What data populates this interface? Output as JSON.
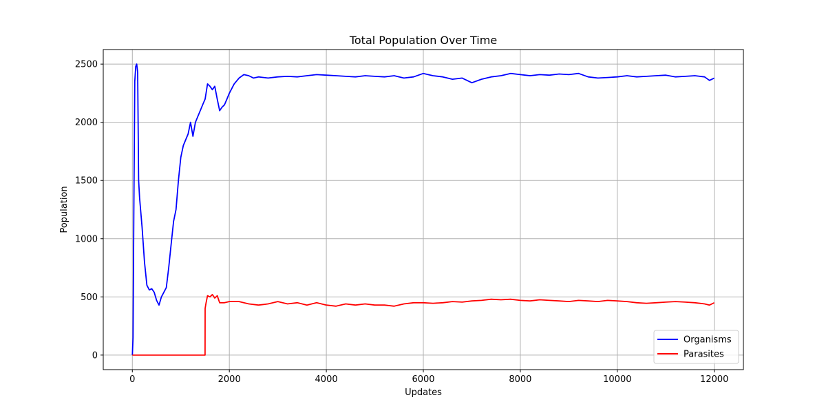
{
  "chart_data": {
    "type": "line",
    "title": "Total Population Over Time",
    "xlabel": "Updates",
    "ylabel": "Population",
    "xlim": [
      -600,
      12600
    ],
    "ylim": [
      -125,
      2625
    ],
    "xticks": [
      0,
      2000,
      4000,
      6000,
      8000,
      10000,
      12000
    ],
    "xtick_labels": [
      "0",
      "2000",
      "4000",
      "6000",
      "8000",
      "10000",
      "12000"
    ],
    "yticks": [
      0,
      500,
      1000,
      1500,
      2000,
      2500
    ],
    "ytick_labels": [
      "0",
      "500",
      "1000",
      "1500",
      "2000",
      "2500"
    ],
    "grid": true,
    "legend_position": "bottom-right",
    "series": [
      {
        "name": "Organisms",
        "color": "#0000ff",
        "x": [
          0,
          15,
          30,
          50,
          70,
          90,
          110,
          130,
          150,
          200,
          250,
          300,
          350,
          400,
          450,
          500,
          550,
          600,
          650,
          700,
          750,
          800,
          850,
          900,
          950,
          1000,
          1050,
          1100,
          1150,
          1200,
          1250,
          1300,
          1350,
          1400,
          1450,
          1500,
          1550,
          1600,
          1650,
          1700,
          1750,
          1800,
          1850,
          1900,
          1950,
          2000,
          2100,
          2200,
          2300,
          2400,
          2500,
          2600,
          2800,
          3000,
          3200,
          3400,
          3600,
          3800,
          4000,
          4200,
          4400,
          4600,
          4800,
          5000,
          5200,
          5400,
          5600,
          5800,
          6000,
          6200,
          6400,
          6600,
          6800,
          7000,
          7200,
          7400,
          7600,
          7800,
          8000,
          8200,
          8400,
          8600,
          8800,
          9000,
          9200,
          9400,
          9600,
          9800,
          10000,
          10200,
          10400,
          10600,
          10800,
          11000,
          11200,
          11400,
          11600,
          11800,
          11900,
          12000
        ],
        "y": [
          0,
          150,
          1200,
          2350,
          2480,
          2500,
          2430,
          1500,
          1350,
          1100,
          800,
          600,
          560,
          570,
          540,
          470,
          430,
          500,
          540,
          580,
          750,
          950,
          1150,
          1250,
          1500,
          1700,
          1800,
          1850,
          1900,
          2000,
          1880,
          2000,
          2050,
          2100,
          2150,
          2200,
          2330,
          2310,
          2280,
          2310,
          2200,
          2100,
          2130,
          2150,
          2200,
          2250,
          2330,
          2380,
          2410,
          2400,
          2380,
          2390,
          2380,
          2390,
          2395,
          2390,
          2400,
          2410,
          2405,
          2400,
          2395,
          2390,
          2400,
          2395,
          2390,
          2400,
          2380,
          2390,
          2420,
          2400,
          2390,
          2370,
          2380,
          2340,
          2370,
          2390,
          2400,
          2420,
          2410,
          2400,
          2410,
          2405,
          2415,
          2410,
          2420,
          2390,
          2380,
          2385,
          2390,
          2400,
          2390,
          2395,
          2400,
          2405,
          2390,
          2395,
          2400,
          2390,
          2360,
          2380
        ]
      },
      {
        "name": "Parasites",
        "color": "#ff0000",
        "x": [
          0,
          500,
          1000,
          1499,
          1500,
          1520,
          1550,
          1600,
          1650,
          1700,
          1750,
          1800,
          1900,
          2000,
          2200,
          2400,
          2600,
          2800,
          3000,
          3200,
          3400,
          3600,
          3800,
          4000,
          4200,
          4400,
          4600,
          4800,
          5000,
          5200,
          5400,
          5600,
          5800,
          6000,
          6200,
          6400,
          6600,
          6800,
          7000,
          7200,
          7400,
          7600,
          7800,
          8000,
          8200,
          8400,
          8600,
          8800,
          9000,
          9200,
          9400,
          9600,
          9800,
          10000,
          10200,
          10400,
          10600,
          10800,
          11000,
          11200,
          11400,
          11600,
          11800,
          11900,
          12000
        ],
        "y": [
          0,
          0,
          0,
          0,
          400,
          450,
          510,
          500,
          520,
          490,
          510,
          450,
          450,
          460,
          460,
          440,
          430,
          440,
          460,
          440,
          450,
          430,
          450,
          430,
          420,
          440,
          430,
          440,
          430,
          430,
          420,
          440,
          450,
          450,
          445,
          450,
          460,
          455,
          465,
          470,
          480,
          475,
          480,
          470,
          465,
          475,
          470,
          465,
          460,
          470,
          465,
          460,
          470,
          465,
          460,
          450,
          445,
          450,
          455,
          460,
          455,
          450,
          440,
          430,
          450
        ]
      }
    ]
  }
}
